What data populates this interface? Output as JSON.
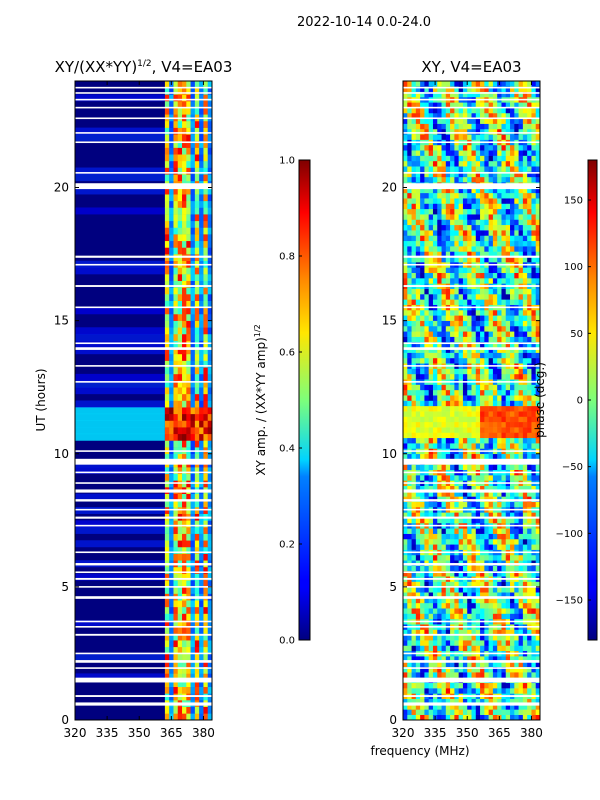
{
  "chart_data": {
    "type": "heatmap",
    "suptitle": "2022-10-14 0.0-24.0",
    "xlabel": "frequency (MHz)",
    "panels": [
      {
        "id": "amp",
        "title_main": "XY/(XX*YY)",
        "title_sup": "1/2",
        "title_rest": ", V4=EA03",
        "ylabel": "UT (hours)",
        "xlim": [
          320,
          384
        ],
        "ylim": [
          0,
          24
        ],
        "xticks": [
          320,
          335,
          350,
          365,
          380
        ],
        "yticks": [
          0,
          5,
          10,
          15,
          20
        ],
        "signal_start_mhz": 362,
        "channel_bands_mhz": [
          363,
          368,
          372,
          377,
          381
        ],
        "bright_event_hours": [
          10.6,
          11.8
        ]
      },
      {
        "id": "phase",
        "title_main": "XY, V4=EA03",
        "xlim": [
          320,
          384
        ],
        "ylim": [
          0,
          24
        ],
        "xticks": [
          320,
          335,
          350,
          365,
          380
        ],
        "yticks": [
          0,
          5,
          10,
          15,
          20
        ]
      }
    ],
    "flagged_hours": [
      0.6,
      0.9,
      1.5,
      1.95,
      2.2,
      2.5,
      3.2,
      3.5,
      3.7,
      4.6,
      5.0,
      5.3,
      5.55,
      5.85,
      6.3,
      7.3,
      7.6,
      7.9,
      8.25,
      8.6,
      8.9,
      9.3,
      9.7,
      10.1,
      12.7,
      13.3,
      13.95,
      14.15,
      15.5,
      16.3,
      17.1,
      17.4,
      20.05,
      20.55,
      21.7,
      22.05,
      22.6,
      23.0,
      23.3,
      23.55,
      23.75
    ],
    "flag_thickness_hours": [
      0.12,
      0.07,
      0.18,
      0.06,
      0.1,
      0.06,
      0.07,
      0.06,
      0.06,
      0.1,
      0.06,
      0.07,
      0.06,
      0.09,
      0.06,
      0.06,
      0.08,
      0.06,
      0.09,
      0.12,
      0.06,
      0.06,
      0.22,
      0.06,
      0.06,
      0.06,
      0.1,
      0.06,
      0.06,
      0.07,
      0.06,
      0.08,
      0.22,
      0.06,
      0.06,
      0.06,
      0.06,
      0.06,
      0.06,
      0.06,
      0.06
    ],
    "colorbars": [
      {
        "id": "amp-cbar",
        "label_main": "XY amp. / (XX*YY amp)",
        "label_sup": "1/2",
        "vmin": 0.0,
        "vmax": 1.0,
        "ticks": [
          0.0,
          0.2,
          0.4,
          0.6,
          0.8,
          1.0
        ],
        "tick_labels": [
          "0.0",
          "0.2",
          "0.4",
          "0.6",
          "0.8",
          "1.0"
        ]
      },
      {
        "id": "phase-cbar",
        "label": "phase (deg.)",
        "vmin": -180,
        "vmax": 180,
        "ticks": [
          -150,
          -100,
          -50,
          0,
          50,
          100,
          150
        ],
        "tick_labels": [
          "−150",
          "−100",
          "−50",
          "0",
          "50",
          "100",
          "150"
        ]
      }
    ]
  }
}
